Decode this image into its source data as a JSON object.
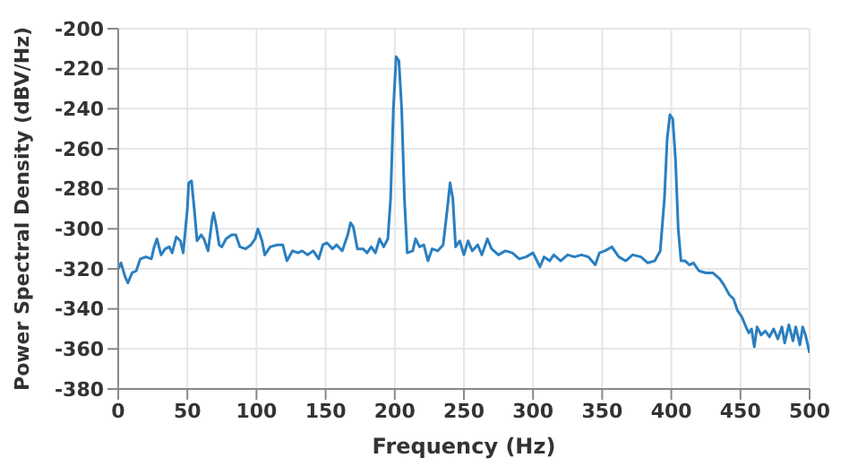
{
  "chart_data": {
    "type": "line",
    "xlabel": "Frequency (Hz)",
    "ylabel": "Power Spectral Density (dBV/Hz)",
    "xlim": [
      0,
      500
    ],
    "xticks": [
      0,
      50,
      100,
      150,
      200,
      250,
      300,
      350,
      400,
      450,
      500
    ],
    "ylim": [
      -380,
      -200
    ],
    "yticks": [
      -380,
      -360,
      -340,
      -320,
      -300,
      -280,
      -260,
      -240,
      -220,
      -200
    ],
    "grid": true,
    "marker": "none",
    "line_style": "solid",
    "series": [
      {
        "color": "#2a7fc0",
        "x": [
          0,
          2,
          5,
          7,
          10,
          13,
          16,
          20,
          24,
          26,
          28,
          31,
          34,
          37,
          39,
          42,
          45,
          47,
          50,
          51,
          53,
          55,
          57,
          60,
          62,
          65,
          68,
          69,
          71,
          73,
          75,
          78,
          82,
          85,
          88,
          92,
          96,
          99,
          101,
          104,
          106,
          110,
          115,
          119,
          122,
          126,
          130,
          133,
          137,
          141,
          145,
          148,
          151,
          155,
          158,
          162,
          166,
          168,
          170,
          173,
          177,
          180,
          183,
          186,
          189,
          192,
          195,
          197,
          199,
          201,
          203,
          205,
          207,
          209,
          213,
          215,
          218,
          221,
          224,
          227,
          231,
          235,
          238,
          240,
          242,
          244,
          247,
          250,
          253,
          256,
          260,
          263,
          267,
          270,
          275,
          280,
          285,
          290,
          295,
          300,
          305,
          308,
          312,
          315,
          320,
          325,
          330,
          335,
          340,
          345,
          348,
          352,
          357,
          362,
          367,
          372,
          378,
          383,
          388,
          392,
          395,
          397,
          399,
          401,
          403,
          405,
          407,
          410,
          413,
          416,
          420,
          425,
          430,
          435,
          438,
          442,
          445,
          448,
          451,
          454,
          456,
          458,
          460,
          462,
          465,
          468,
          471,
          474,
          477,
          480,
          482,
          485,
          488,
          490,
          493,
          495,
          497,
          500
        ],
        "values": [
          -320,
          -317,
          -324,
          -327,
          -322,
          -321,
          -315,
          -314,
          -315,
          -309,
          -305,
          -313,
          -310,
          -309,
          -312,
          -304,
          -306,
          -312,
          -290,
          -277,
          -276,
          -290,
          -306,
          -303,
          -305,
          -311,
          -295,
          -292,
          -299,
          -308,
          -309,
          -305,
          -303,
          -303,
          -309,
          -310,
          -308,
          -305,
          -300,
          -306,
          -313,
          -309,
          -308,
          -308,
          -316,
          -311,
          -312,
          -311,
          -313,
          -311,
          -315,
          -308,
          -307,
          -310,
          -308,
          -311,
          -303,
          -297,
          -299,
          -310,
          -310,
          -312,
          -309,
          -312,
          -305,
          -309,
          -305,
          -285,
          -240,
          -214,
          -216,
          -240,
          -285,
          -312,
          -311,
          -305,
          -309,
          -308,
          -316,
          -310,
          -311,
          -308,
          -290,
          -277,
          -285,
          -309,
          -306,
          -313,
          -306,
          -311,
          -308,
          -313,
          -305,
          -310,
          -313,
          -311,
          -312,
          -315,
          -314,
          -312,
          -319,
          -314,
          -316,
          -313,
          -316,
          -313,
          -314,
          -313,
          -314,
          -318,
          -312,
          -311,
          -309,
          -314,
          -316,
          -313,
          -314,
          -317,
          -316,
          -311,
          -285,
          -255,
          -243,
          -245,
          -265,
          -300,
          -316,
          -316,
          -318,
          -317,
          -321,
          -322,
          -322,
          -325,
          -328,
          -333,
          -335,
          -341,
          -344,
          -349,
          -352,
          -350,
          -359,
          -349,
          -353,
          -351,
          -354,
          -350,
          -355,
          -349,
          -357,
          -348,
          -356,
          -349,
          -358,
          -349,
          -353,
          -362
        ]
      }
    ]
  }
}
